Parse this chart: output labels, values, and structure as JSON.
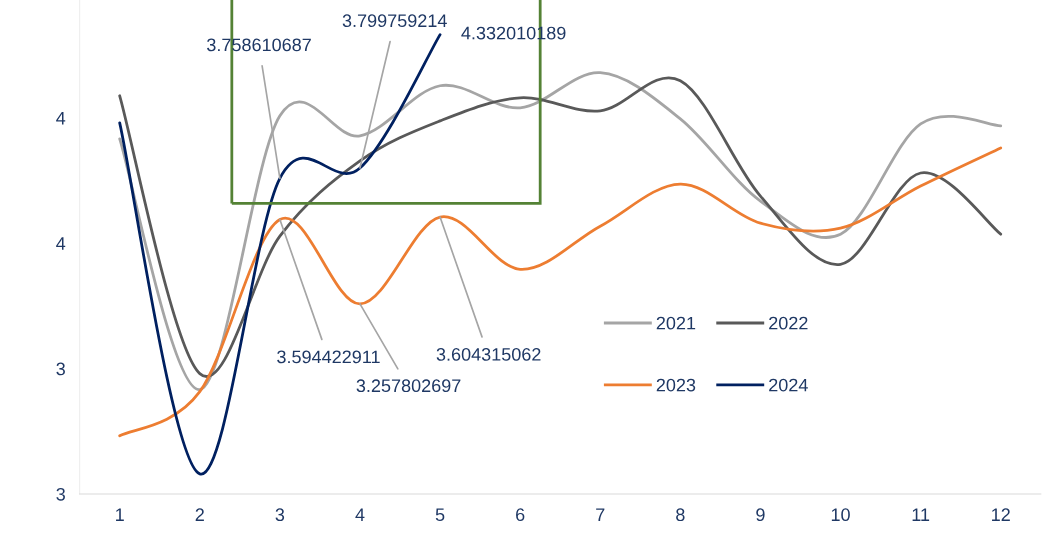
{
  "chart_data": {
    "type": "line",
    "categories": [
      "1",
      "2",
      "3",
      "4",
      "5",
      "6",
      "7",
      "8",
      "9",
      "10",
      "11",
      "12"
    ],
    "ylim": [
      2.5,
      4.47
    ],
    "yticks": [
      {
        "value": 2.5,
        "label": "3"
      },
      {
        "value": 3.0,
        "label": "3"
      },
      {
        "value": 3.5,
        "label": "4"
      },
      {
        "value": 4.0,
        "label": "4"
      }
    ],
    "grid": false,
    "legend": "right",
    "marker": "none",
    "line_style": "solid",
    "series": [
      {
        "name": "2021",
        "color": "#a5a5a5",
        "values": [
          3.916,
          2.916,
          4.008,
          3.928,
          4.128,
          4.04,
          4.18,
          3.996,
          3.668,
          3.536,
          3.976,
          3.968
        ]
      },
      {
        "name": "2022",
        "color": "#595959",
        "values": [
          4.088,
          2.98,
          3.528,
          3.828,
          3.988,
          4.08,
          4.028,
          4.148,
          3.688,
          3.416,
          3.78,
          3.536
        ]
      },
      {
        "name": "2023",
        "color": "#ed7d31",
        "values": [
          2.732,
          2.908,
          3.594422911,
          3.257802697,
          3.604315062,
          3.396,
          3.568,
          3.736,
          3.58,
          3.56,
          3.728,
          3.88
        ],
        "value_labels": [
          null,
          null,
          "3.594422911",
          "3.257802697",
          "3.604315062",
          null,
          null,
          null,
          null,
          null,
          null,
          null
        ]
      },
      {
        "name": "2024",
        "color": "#002060",
        "values": [
          3.98,
          2.58,
          3.758610687,
          3.799759214,
          4.332010189,
          null,
          null,
          null,
          null,
          null,
          null,
          null
        ],
        "value_labels": [
          null,
          null,
          "3.758610687",
          "3.799759214",
          "4.332010189",
          null,
          null,
          null,
          null,
          null,
          null,
          null
        ]
      }
    ]
  }
}
